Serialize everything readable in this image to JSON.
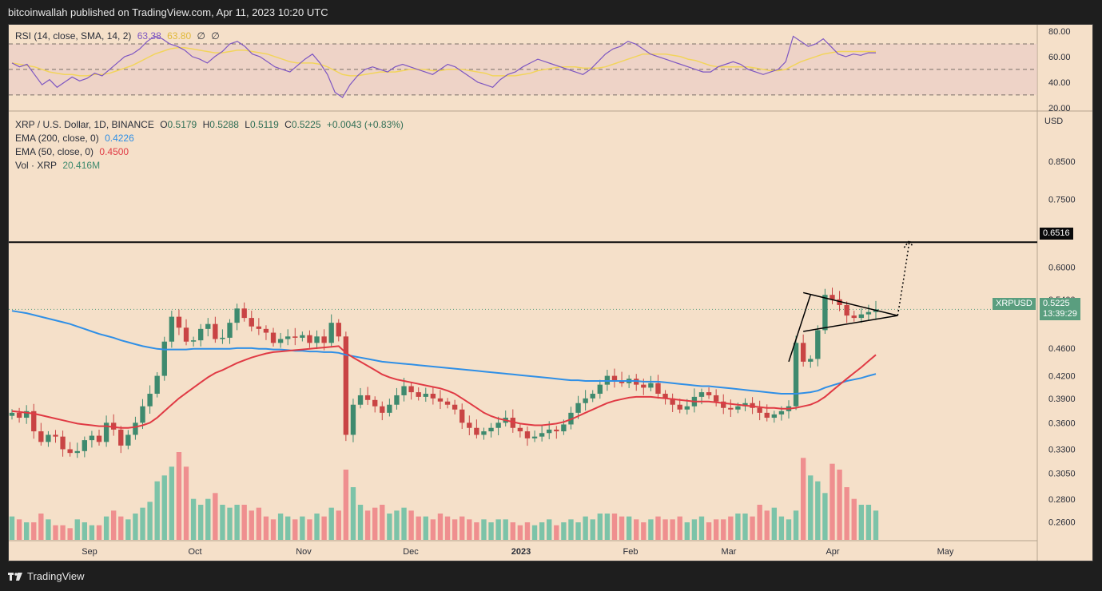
{
  "header": {
    "publish_line": "bitcoinwallah published on TradingView.com, Apr 11, 2023 10:20 UTC"
  },
  "footer": {
    "brand": "TradingView"
  },
  "rsi_legend": {
    "title": "RSI (14, close, SMA, 14, 2)",
    "rsi_value": "63.38",
    "sma_value": "63.80",
    "icon_a": "∅",
    "icon_b": "∅"
  },
  "price_legend": {
    "symbol_line": "XRP / U.S. Dollar, 1D, BINANCE",
    "o_label": "O",
    "o_value": "0.5179",
    "h_label": "H",
    "h_value": "0.5288",
    "l_label": "L",
    "l_value": "0.5119",
    "c_label": "C",
    "c_value": "0.5225",
    "change": "+0.0043 (+0.83%)",
    "ema200_label": "EMA (200, close, 0)",
    "ema200_value": "0.4226",
    "ema50_label": "EMA (50, close, 0)",
    "ema50_value": "0.4500",
    "vol_label": "Vol · XRP",
    "vol_value": "20.416M"
  },
  "axis_tags": {
    "level_value": "0.6516",
    "symbol_tag": "XRPUSD",
    "price_tag": "0.5225",
    "countdown": "13:39:29",
    "currency": "USD"
  },
  "colors": {
    "background": "#f5e0c9",
    "up_candle": "#3e8a6e",
    "down_candle": "#c94444",
    "ema200": "#2f8fe6",
    "ema50": "#e03a44",
    "rsi_line": "#7e57c2",
    "rsi_sma": "#f2d45c",
    "up_volume": "#7cc3a8",
    "down_volume": "#ef8f8f",
    "last_price_tag": "#5a9e7f"
  },
  "chart_data": [
    {
      "type": "line",
      "name": "rsi-panel",
      "yticks": [
        20,
        40,
        60,
        80
      ],
      "ylim": [
        18,
        85
      ],
      "bands": [
        30,
        50,
        70
      ],
      "series": [
        {
          "name": "RSI",
          "values": [
            55,
            52,
            54,
            46,
            38,
            42,
            36,
            40,
            44,
            41,
            43,
            47,
            45,
            50,
            55,
            60,
            62,
            66,
            72,
            76,
            74,
            70,
            68,
            65,
            60,
            58,
            55,
            60,
            64,
            70,
            72,
            68,
            62,
            60,
            56,
            52,
            50,
            48,
            53,
            58,
            62,
            55,
            46,
            32,
            28,
            38,
            45,
            50,
            52,
            50,
            48,
            52,
            54,
            52,
            50,
            48,
            46,
            50,
            54,
            52,
            48,
            44,
            40,
            38,
            36,
            42,
            46,
            48,
            52,
            55,
            58,
            56,
            54,
            52,
            50,
            48,
            46,
            50,
            56,
            62,
            66,
            68,
            72,
            70,
            66,
            62,
            60,
            58,
            56,
            54,
            52,
            50,
            48,
            48,
            52,
            54,
            56,
            54,
            50,
            48,
            46,
            48,
            50,
            56,
            76,
            72,
            68,
            70,
            74,
            68,
            62,
            60,
            62,
            61,
            63,
            63
          ]
        },
        {
          "name": "RSI-based MA",
          "values": [
            55,
            54,
            53,
            52,
            50,
            48,
            47,
            46,
            46,
            45,
            45,
            46,
            46,
            47,
            49,
            51,
            53,
            56,
            59,
            62,
            64,
            66,
            67,
            67,
            66,
            65,
            64,
            63,
            63,
            64,
            65,
            65,
            64,
            63,
            62,
            60,
            58,
            56,
            55,
            55,
            55,
            54,
            52,
            49,
            46,
            45,
            45,
            46,
            47,
            48,
            48,
            48,
            49,
            50,
            50,
            50,
            49,
            49,
            50,
            50,
            50,
            49,
            48,
            47,
            45,
            45,
            45,
            45,
            46,
            47,
            49,
            50,
            51,
            52,
            52,
            52,
            51,
            51,
            51,
            52,
            54,
            56,
            58,
            60,
            62,
            62,
            62,
            62,
            61,
            60,
            58,
            57,
            55,
            53,
            52,
            52,
            52,
            52,
            52,
            51,
            50,
            49,
            49,
            50,
            53,
            56,
            58,
            60,
            62,
            63,
            64,
            64,
            64,
            64,
            64,
            64
          ]
        }
      ]
    },
    {
      "type": "candlestick",
      "name": "price-panel",
      "yticks": [
        0.26,
        0.28,
        0.305,
        0.33,
        0.36,
        0.39,
        0.42,
        0.46,
        0.54,
        0.6,
        0.75,
        0.85
      ],
      "ytick_labels": [
        "0.2600",
        "0.2800",
        "0.3050",
        "0.3300",
        "0.3600",
        "0.3900",
        "0.4200",
        "0.4600",
        "0.5400",
        "0.6000",
        "0.7500",
        "0.8500"
      ],
      "ylim": [
        0.245,
        1.0
      ],
      "log_scale": true,
      "xticks": [
        "Sep",
        "Oct",
        "Nov",
        "Dec",
        "2023",
        "Feb",
        "Mar",
        "Apr",
        "May"
      ],
      "horizontal_level": 0.6516,
      "last_price": 0.5225,
      "close": [
        0.372,
        0.366,
        0.374,
        0.35,
        0.338,
        0.346,
        0.344,
        0.33,
        0.326,
        0.328,
        0.34,
        0.345,
        0.338,
        0.36,
        0.352,
        0.334,
        0.346,
        0.36,
        0.38,
        0.396,
        0.42,
        0.47,
        0.51,
        0.492,
        0.47,
        0.472,
        0.49,
        0.498,
        0.474,
        0.476,
        0.5,
        0.524,
        0.508,
        0.494,
        0.49,
        0.484,
        0.468,
        0.474,
        0.478,
        0.476,
        0.48,
        0.468,
        0.478,
        0.468,
        0.5,
        0.478,
        0.346,
        0.382,
        0.394,
        0.388,
        0.38,
        0.372,
        0.382,
        0.394,
        0.406,
        0.398,
        0.392,
        0.396,
        0.39,
        0.386,
        0.382,
        0.376,
        0.36,
        0.354,
        0.346,
        0.35,
        0.354,
        0.36,
        0.366,
        0.354,
        0.35,
        0.342,
        0.344,
        0.348,
        0.352,
        0.35,
        0.358,
        0.372,
        0.384,
        0.39,
        0.396,
        0.408,
        0.42,
        0.414,
        0.41,
        0.416,
        0.408,
        0.404,
        0.41,
        0.396,
        0.39,
        0.382,
        0.376,
        0.38,
        0.392,
        0.398,
        0.394,
        0.386,
        0.378,
        0.376,
        0.38,
        0.384,
        0.378,
        0.372,
        0.366,
        0.37,
        0.374,
        0.38,
        0.468,
        0.44,
        0.444,
        0.488,
        0.548,
        0.54,
        0.53,
        0.512,
        0.508,
        0.514,
        0.518,
        0.5225
      ],
      "ema200": [
        0.52,
        0.518,
        0.516,
        0.513,
        0.51,
        0.507,
        0.504,
        0.501,
        0.498,
        0.494,
        0.49,
        0.486,
        0.482,
        0.479,
        0.476,
        0.472,
        0.469,
        0.466,
        0.463,
        0.461,
        0.459,
        0.458,
        0.458,
        0.458,
        0.458,
        0.459,
        0.459,
        0.459,
        0.459,
        0.459,
        0.459,
        0.46,
        0.46,
        0.46,
        0.459,
        0.459,
        0.458,
        0.458,
        0.457,
        0.456,
        0.456,
        0.455,
        0.455,
        0.454,
        0.454,
        0.453,
        0.45,
        0.448,
        0.446,
        0.444,
        0.442,
        0.44,
        0.439,
        0.438,
        0.437,
        0.436,
        0.435,
        0.434,
        0.433,
        0.432,
        0.431,
        0.43,
        0.429,
        0.428,
        0.427,
        0.426,
        0.425,
        0.424,
        0.423,
        0.422,
        0.421,
        0.42,
        0.419,
        0.418,
        0.417,
        0.416,
        0.415,
        0.414,
        0.414,
        0.413,
        0.413,
        0.413,
        0.413,
        0.413,
        0.413,
        0.413,
        0.413,
        0.412,
        0.412,
        0.412,
        0.411,
        0.41,
        0.409,
        0.408,
        0.407,
        0.406,
        0.406,
        0.405,
        0.404,
        0.403,
        0.402,
        0.401,
        0.4,
        0.399,
        0.398,
        0.397,
        0.396,
        0.396,
        0.396,
        0.397,
        0.398,
        0.4,
        0.404,
        0.407,
        0.41,
        0.413,
        0.415,
        0.417,
        0.42,
        0.4226
      ],
      "ema50": [
        0.374,
        0.373,
        0.372,
        0.371,
        0.369,
        0.367,
        0.365,
        0.363,
        0.361,
        0.359,
        0.358,
        0.357,
        0.356,
        0.356,
        0.355,
        0.354,
        0.354,
        0.355,
        0.357,
        0.36,
        0.366,
        0.374,
        0.382,
        0.39,
        0.397,
        0.404,
        0.411,
        0.418,
        0.424,
        0.428,
        0.433,
        0.438,
        0.442,
        0.446,
        0.449,
        0.452,
        0.454,
        0.455,
        0.456,
        0.457,
        0.458,
        0.459,
        0.46,
        0.461,
        0.462,
        0.463,
        0.453,
        0.446,
        0.44,
        0.434,
        0.428,
        0.422,
        0.418,
        0.415,
        0.413,
        0.411,
        0.409,
        0.407,
        0.405,
        0.403,
        0.4,
        0.396,
        0.39,
        0.384,
        0.378,
        0.372,
        0.368,
        0.365,
        0.363,
        0.361,
        0.359,
        0.358,
        0.357,
        0.357,
        0.358,
        0.359,
        0.361,
        0.364,
        0.368,
        0.372,
        0.376,
        0.38,
        0.384,
        0.387,
        0.389,
        0.391,
        0.392,
        0.392,
        0.392,
        0.391,
        0.39,
        0.389,
        0.388,
        0.387,
        0.386,
        0.386,
        0.386,
        0.385,
        0.384,
        0.383,
        0.382,
        0.381,
        0.38,
        0.379,
        0.378,
        0.378,
        0.377,
        0.377,
        0.378,
        0.38,
        0.382,
        0.386,
        0.392,
        0.4,
        0.408,
        0.416,
        0.424,
        0.432,
        0.441,
        0.45
      ],
      "volume": [
        8,
        7,
        6,
        6,
        9,
        7,
        5,
        5,
        4,
        7,
        6,
        5,
        5,
        8,
        10,
        8,
        7,
        9,
        11,
        13,
        20,
        22,
        25,
        30,
        25,
        14,
        12,
        14,
        16,
        12,
        11,
        12,
        12,
        10,
        11,
        8,
        7,
        9,
        8,
        7,
        8,
        7,
        9,
        8,
        11,
        10,
        24,
        18,
        12,
        10,
        11,
        12,
        9,
        10,
        11,
        10,
        8,
        8,
        7,
        9,
        8,
        7,
        8,
        7,
        6,
        7,
        6,
        7,
        7,
        6,
        5,
        6,
        5,
        6,
        7,
        5,
        6,
        7,
        6,
        8,
        7,
        9,
        9,
        9,
        8,
        8,
        7,
        6,
        7,
        8,
        7,
        7,
        8,
        6,
        7,
        8,
        6,
        7,
        7,
        8,
        9,
        9,
        8,
        12,
        10,
        11,
        8,
        7,
        10,
        28,
        22,
        20,
        16,
        26,
        24,
        18,
        14,
        12,
        12,
        10
      ],
      "pattern": "symmetrical triangle breakout projected to 0.6516"
    }
  ]
}
